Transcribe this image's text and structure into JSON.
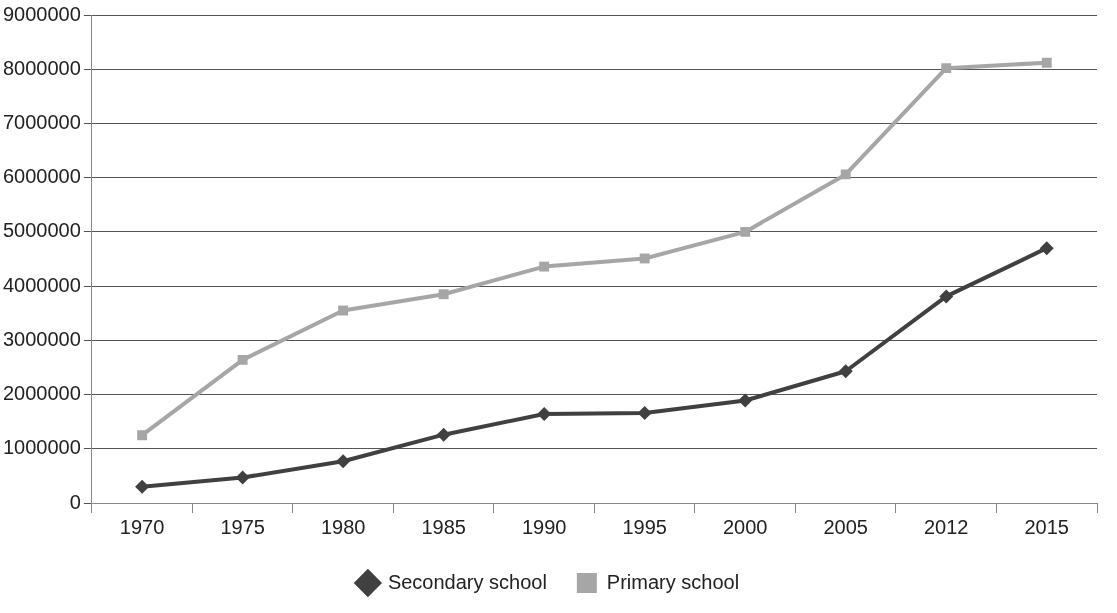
{
  "chart_data": {
    "type": "line",
    "categories": [
      "1970",
      "1975",
      "1980",
      "1985",
      "1990",
      "1995",
      "2000",
      "2005",
      "2012",
      "2015"
    ],
    "series": [
      {
        "name": "Secondary school",
        "color": "#404040",
        "marker": "diamond",
        "values": [
          300000,
          470000,
          770000,
          1260000,
          1640000,
          1660000,
          1890000,
          2430000,
          3810000,
          4700000
        ]
      },
      {
        "name": "Primary school",
        "color": "#a6a6a6",
        "marker": "square",
        "values": [
          1250000,
          2640000,
          3550000,
          3850000,
          4360000,
          4510000,
          5000000,
          6060000,
          8020000,
          8120000
        ]
      }
    ],
    "ylim": [
      0,
      9000000
    ],
    "yticks": [
      0,
      1000000,
      2000000,
      3000000,
      4000000,
      5000000,
      6000000,
      7000000,
      8000000,
      9000000
    ],
    "grid": "y",
    "legend": "bottom",
    "line_style": "solid"
  }
}
